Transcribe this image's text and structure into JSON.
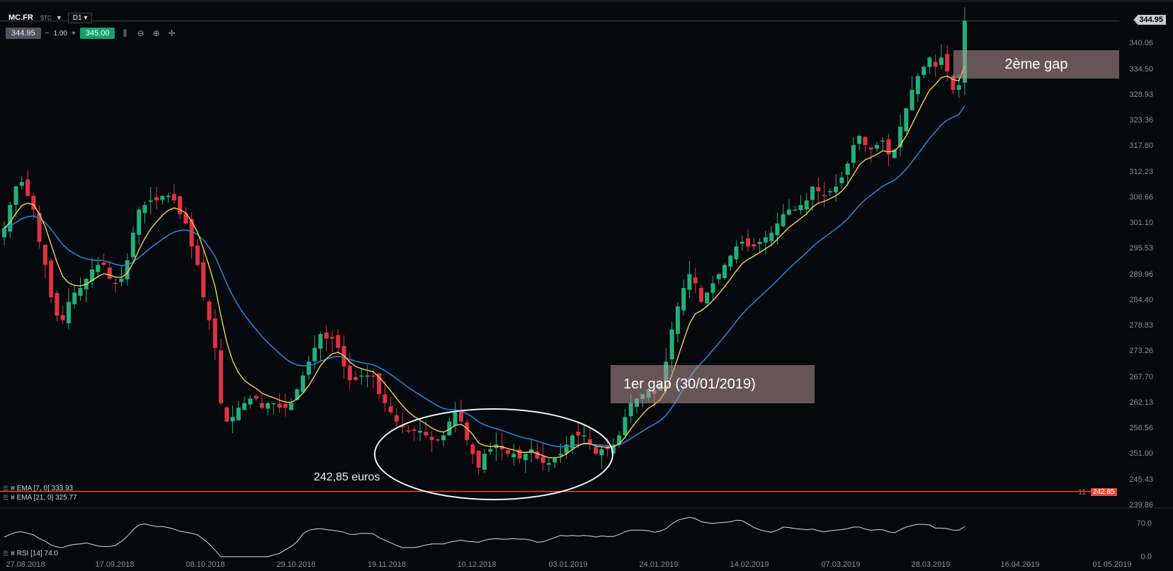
{
  "toolbar": {
    "symbol": "MC.FR",
    "symbol_type": "STC",
    "timeframe": "D1",
    "bid": "344.95",
    "step": "1.00",
    "ask": "345.00"
  },
  "axis": {
    "y_ticks": [
      "340.06",
      "334.50",
      "328.93",
      "323.36",
      "317.80",
      "312.23",
      "306.66",
      "301.10",
      "295.53",
      "289.96",
      "284.40",
      "278.83",
      "273.26",
      "267.70",
      "262.13",
      "256.56",
      "251.00",
      "245.43",
      "239.86"
    ],
    "x_ticks": [
      "27.08.2018",
      "17.09.2018",
      "08.10.2018",
      "29.10.2018",
      "19.11.2018",
      "10.12.2018",
      "03.01.2019",
      "24.01.2019",
      "14.02.2019",
      "07.03.2019",
      "28.03.2019",
      "16.04.2019",
      "01.05.2019"
    ],
    "last_price": "344.95",
    "level_value": "242.85",
    "level_prefix": "11"
  },
  "legend": {
    "ema7": "EMA [7, 0] 333.93",
    "ema21": "EMA [21, 0] 325.77",
    "rsi": "RSI [14] 74.0",
    "rsi_ticks": [
      "70.0",
      "0.0"
    ]
  },
  "annotations": {
    "gap1": "1er gap (30/01/2019)",
    "gap2": "2ème gap",
    "low_label": "242,85 euros"
  },
  "colors": {
    "up": "#22b07a",
    "down": "#e0323f",
    "ema_fast": "#f5d442",
    "ema_slow": "#1f86d6",
    "level": "#e84b3a"
  },
  "chart_data": {
    "type": "candlestick",
    "ylim": [
      239.86,
      345.5
    ],
    "start_date": "27.08.2018",
    "closes": [
      300,
      305,
      309,
      310,
      307,
      304,
      297,
      292,
      285,
      281,
      280,
      284,
      286,
      287,
      289,
      291,
      292,
      292,
      289,
      288,
      289,
      293,
      299,
      304,
      305,
      306,
      306,
      307,
      307,
      306,
      303,
      301,
      296,
      292,
      285,
      280,
      274,
      262,
      258,
      259,
      261,
      262,
      263,
      263,
      261,
      262,
      262,
      261,
      261,
      262,
      265,
      268,
      271,
      274,
      277,
      276,
      276,
      274,
      270,
      267,
      267,
      268,
      268,
      268,
      264,
      262,
      260,
      258,
      257,
      256,
      256,
      256,
      255,
      254,
      254,
      255,
      258,
      260,
      258,
      254,
      251,
      248,
      251,
      252,
      253,
      252,
      251,
      251,
      250,
      251,
      252,
      250,
      249,
      249,
      250,
      251,
      253,
      255,
      255,
      255,
      253,
      251,
      252,
      252,
      253,
      255,
      259,
      262,
      263,
      264,
      265,
      264,
      266,
      271,
      278,
      283,
      287,
      290,
      288,
      284,
      286,
      288,
      290,
      292,
      294,
      296,
      297,
      296,
      296,
      297,
      298,
      299,
      301,
      303,
      304,
      304,
      305,
      306,
      309,
      308,
      307,
      308,
      309,
      311,
      314,
      318,
      320,
      318,
      317,
      318,
      319,
      316,
      317,
      322,
      326,
      330,
      333,
      335,
      337,
      335,
      337,
      334,
      330,
      331,
      345
    ],
    "ema7_last": 333.93,
    "ema21_last": 325.77,
    "low_level": 242.85,
    "rsi_last": 74.0
  }
}
